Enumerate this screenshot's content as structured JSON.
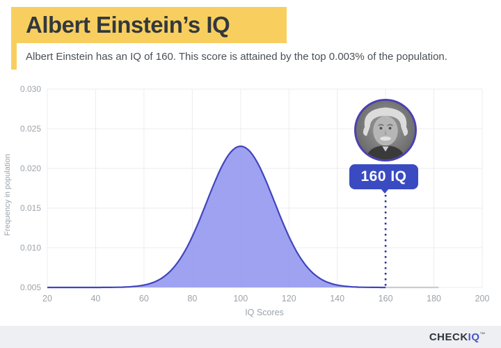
{
  "header": {
    "title": "Albert Einstein’s IQ",
    "subtitle": "Albert Einstein has an IQ of 160. This score is attained by the top 0.003% of the population."
  },
  "chart_data": {
    "type": "area",
    "title": "",
    "xlabel": "IQ Scores",
    "ylabel": "Frequency in population",
    "xlim": [
      20,
      200
    ],
    "ylim": [
      0.005,
      0.03
    ],
    "x_ticks": [
      20,
      40,
      60,
      80,
      100,
      120,
      140,
      160,
      180,
      200
    ],
    "y_ticks": [
      "0.005",
      "0.010",
      "0.015",
      "0.020",
      "0.025",
      "0.030"
    ],
    "grid": true,
    "legend": null,
    "curve": {
      "distribution": "normal",
      "mean": 100,
      "sigma": 14,
      "baseline": 0.005,
      "amplitude": 0.0178,
      "x_range_drawn": [
        20,
        160
      ],
      "sample_points": {
        "iq": [
          20,
          30,
          40,
          50,
          55,
          60,
          65,
          70,
          75,
          80,
          85,
          90,
          95,
          100,
          105,
          110,
          115,
          120,
          125,
          130,
          135,
          140,
          145,
          150,
          155,
          160
        ],
        "freq": [
          0.005,
          0.005,
          0.005,
          0.005,
          0.0051,
          0.0053,
          0.0058,
          0.0068,
          0.0086,
          0.0114,
          0.015,
          0.0188,
          0.0217,
          0.0228,
          0.0217,
          0.0188,
          0.015,
          0.0114,
          0.0086,
          0.0068,
          0.0058,
          0.0053,
          0.0051,
          0.005,
          0.005,
          0.005
        ]
      }
    },
    "marker": {
      "x": 160,
      "label": "160 IQ"
    },
    "tail_segment": {
      "from": 160,
      "to": 182
    }
  },
  "annotation": {
    "badge_label": "160 IQ",
    "photo_alt": "Albert Einstein portrait"
  },
  "footer": {
    "brand_primary": "CHECK",
    "brand_secondary": "IQ",
    "trademark": "™"
  },
  "colors": {
    "highlight_yellow": "#F8CF5F",
    "title_text": "#33383E",
    "subtitle_text": "#4A4F55",
    "axis_text": "#9CA3AA",
    "gridline": "#ECECF0",
    "curve_fill": "#8E92EE",
    "curve_stroke": "#4045BC",
    "marker_line": "#2B2E9B",
    "badge_bg": "#3A4BC2",
    "badge_text": "#FFFFFF",
    "photo_border": "#4A41B0",
    "tail_gray": "#C9CCD1",
    "footer_bg": "#EDEFF2",
    "brand_primary_color": "#2F343A",
    "brand_secondary_color": "#4A56C8"
  }
}
